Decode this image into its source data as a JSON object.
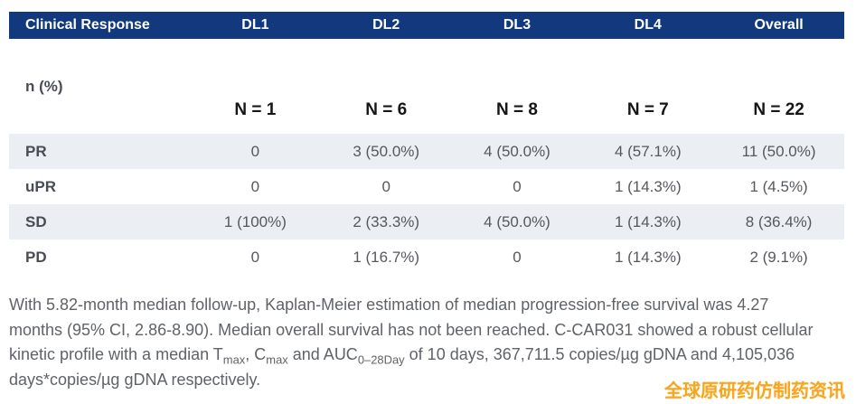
{
  "colors": {
    "header_bg": "#12397e",
    "header_text": "#ffffff",
    "row_alt_bg": "#ebeef3",
    "watermark": "#f6a623"
  },
  "table": {
    "header": [
      "Clinical Response",
      "DL1",
      "DL2",
      "DL3",
      "DL4",
      "Overall"
    ],
    "n_row": {
      "label": "n (%)",
      "values": [
        "N = 1",
        "N = 6",
        "N = 8",
        "N = 7",
        "N = 22"
      ]
    },
    "rows": [
      {
        "label": "PR",
        "values": [
          "0",
          "3 (50.0%)",
          "4 (50.0%)",
          "4 (57.1%)",
          "11 (50.0%)"
        ]
      },
      {
        "label": "uPR",
        "values": [
          "0",
          "0",
          "0",
          "1 (14.3%)",
          "1 (4.5%)"
        ]
      },
      {
        "label": "SD",
        "values": [
          "1 (100%)",
          "2 (33.3%)",
          "4 (50.0%)",
          "1 (14.3%)",
          "8 (36.4%)"
        ]
      },
      {
        "label": "PD",
        "values": [
          "0",
          "1 (16.7%)",
          "0",
          "1 (14.3%)",
          "2 (9.1%)"
        ]
      }
    ]
  },
  "paragraph": {
    "segments": [
      {
        "t": "With 5.82-month median follow-up, Kaplan-Meier estimation of median progression-free survival was 4.27 months (95% CI, 2.86-8.90). Median overall survival has not been reached. C-CAR031 showed a robust cellular kinetic profile with a median T"
      },
      {
        "t": "max",
        "sub": true
      },
      {
        "t": ", C"
      },
      {
        "t": "max",
        "sub": true
      },
      {
        "t": " and AUC"
      },
      {
        "t": "0–28Day",
        "sub": true
      },
      {
        "t": " of 10 days, 367,711.5 copies/µg gDNA and 4,105,036 days*copies/µg gDNA respectively."
      }
    ]
  },
  "watermark": {
    "text": "全球原研药仿制药资讯"
  }
}
